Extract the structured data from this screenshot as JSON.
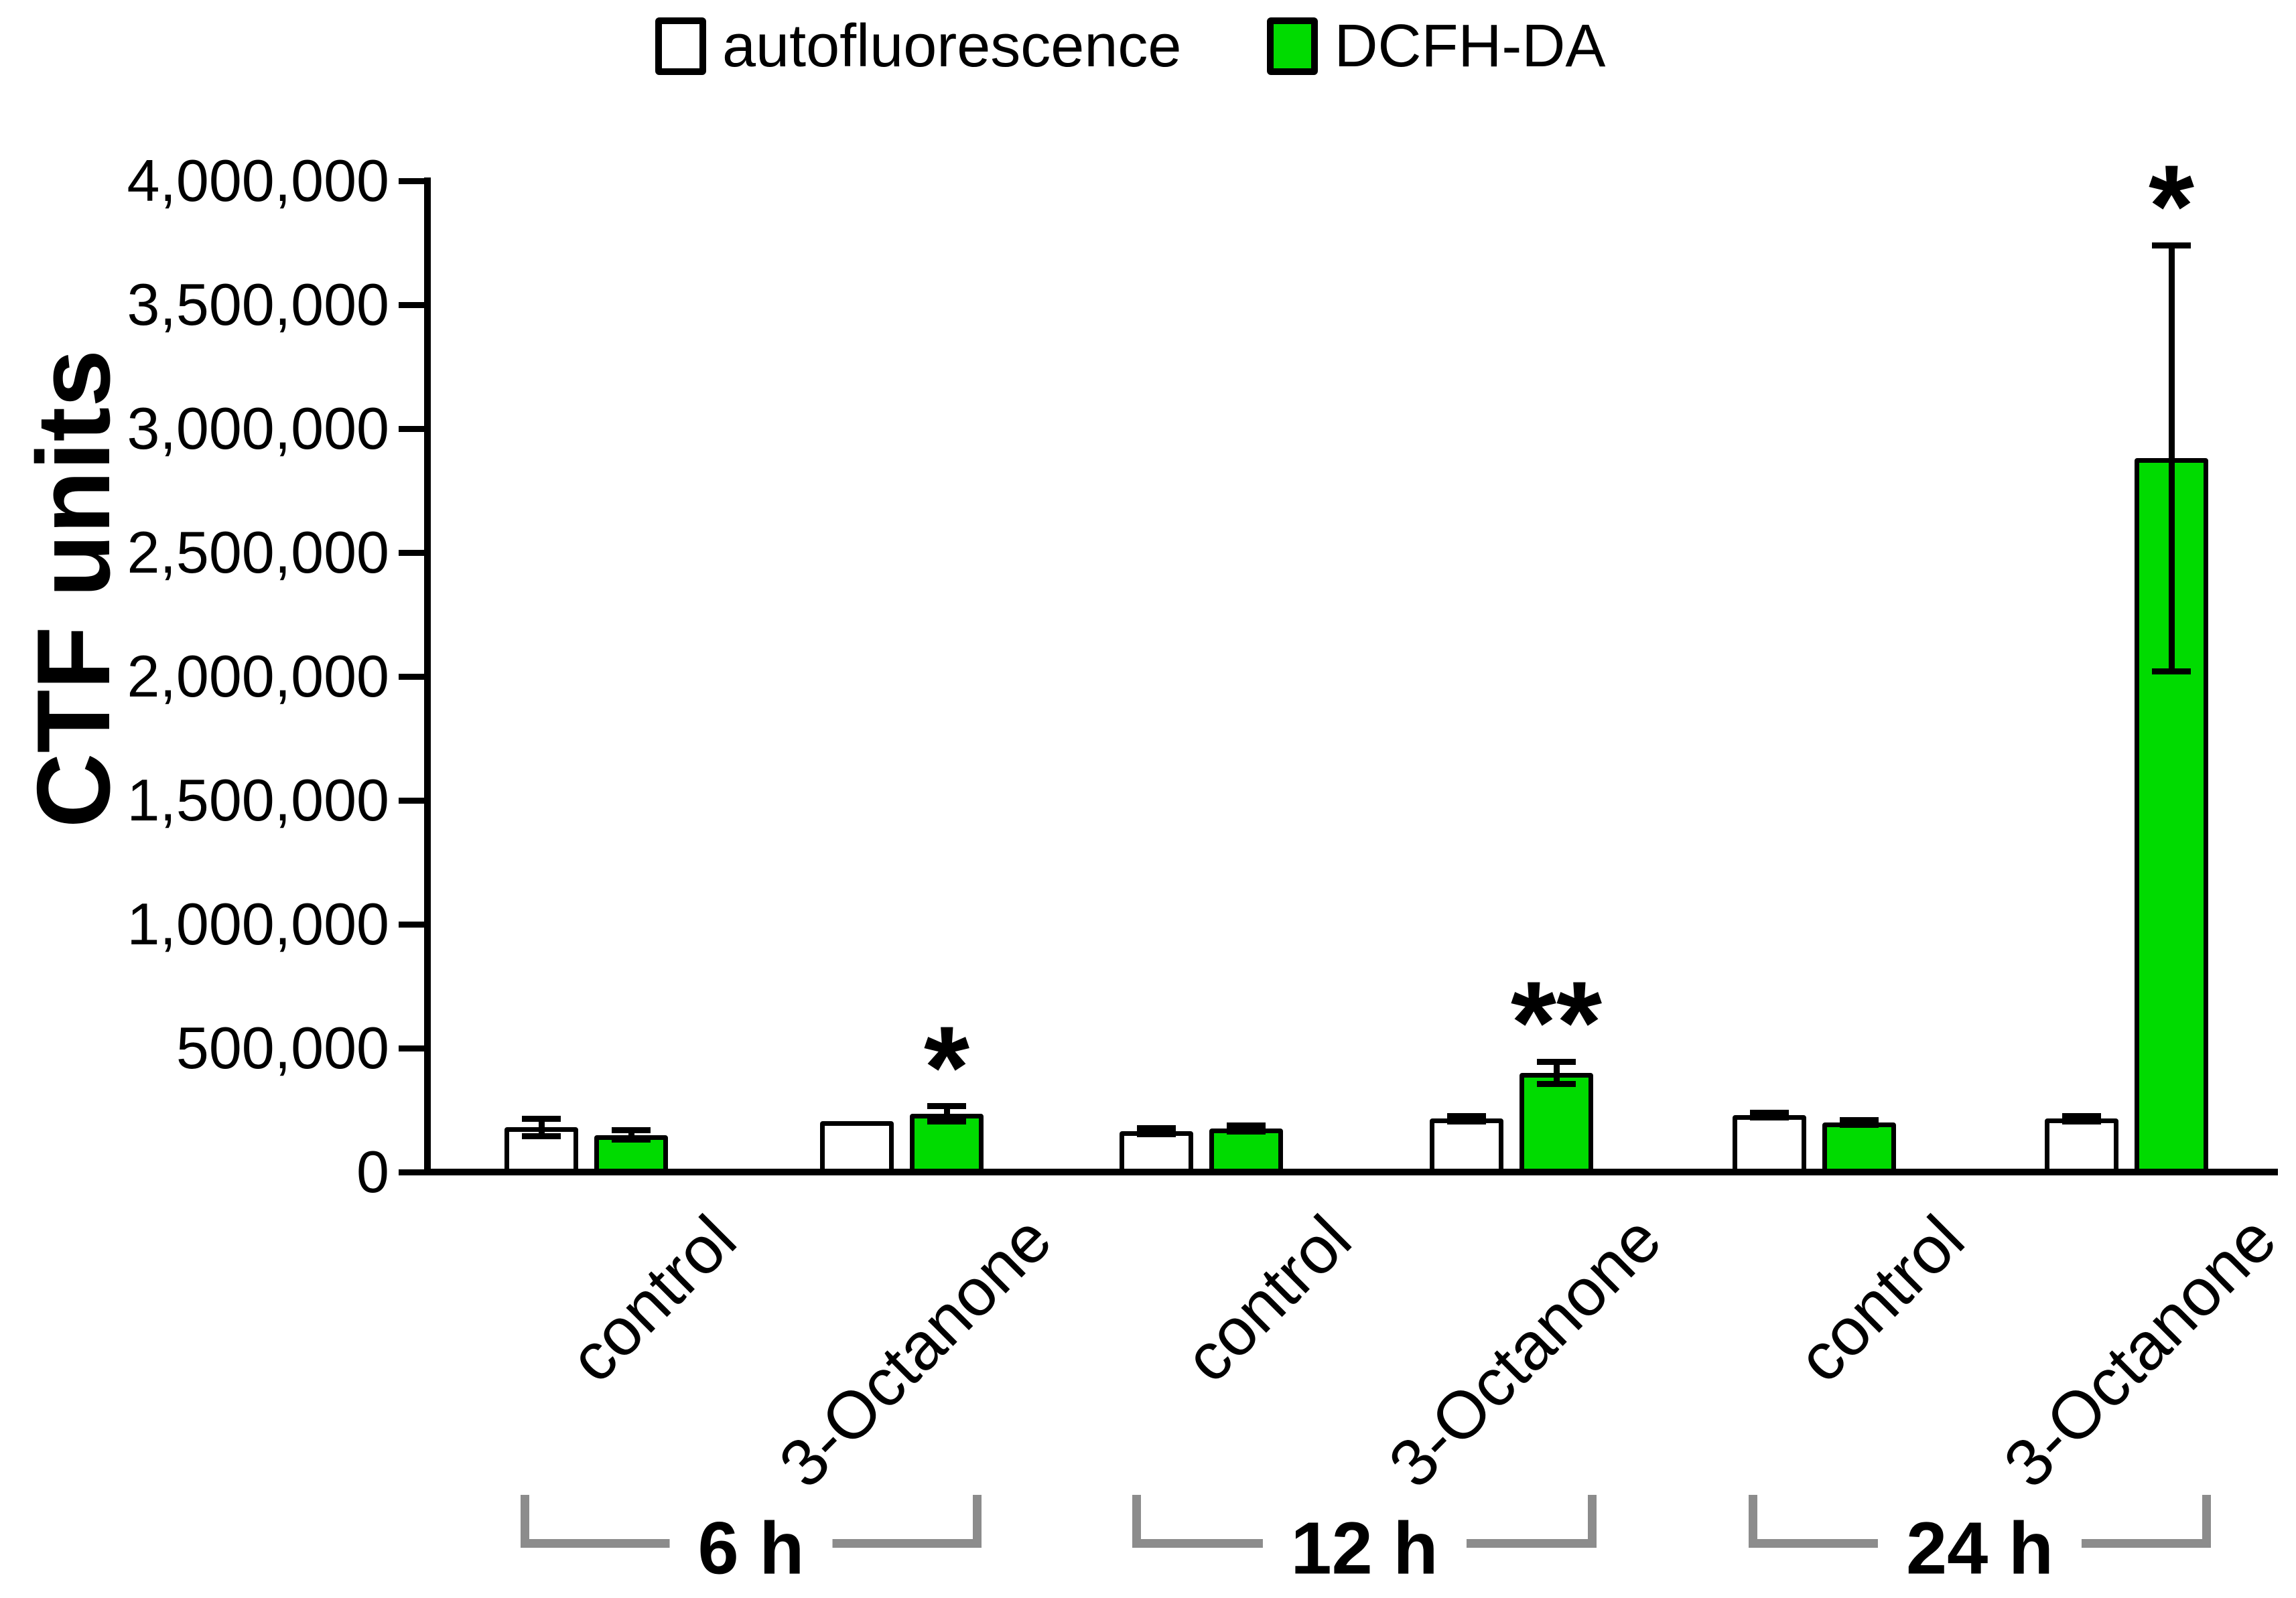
{
  "figure": {
    "ylabel": "CTF units",
    "colors": {
      "bar_white": "#ffffff",
      "bar_green": "#00db00",
      "bar_border": "#000000",
      "bracket_gray": "#8c8c8c"
    }
  },
  "chart_data": {
    "type": "bar",
    "title": "",
    "xlabel": "",
    "ylabel": "CTF units",
    "ylim": [
      0,
      4000000
    ],
    "grid": false,
    "legend_position": "top",
    "y_ticks": [
      {
        "value": 4000000,
        "label": "4,000,000"
      },
      {
        "value": 3500000,
        "label": "3,500,000"
      },
      {
        "value": 3000000,
        "label": "3,000,000"
      },
      {
        "value": 2500000,
        "label": "2,500,000"
      },
      {
        "value": 2000000,
        "label": "2,000,000"
      },
      {
        "value": 1500000,
        "label": "1,500,000"
      },
      {
        "value": 1000000,
        "label": "1,000,000"
      },
      {
        "value": 500000,
        "label": "500,000"
      },
      {
        "value": 0,
        "label": "0"
      }
    ],
    "series": [
      {
        "name": "autofluorescence",
        "color": "#ffffff"
      },
      {
        "name": "DCFH-DA",
        "color": "#00db00"
      }
    ],
    "groups": [
      {
        "label": "6 h",
        "conditions": [
          {
            "label": "control",
            "bars": [
              {
                "series": "autofluorescence",
                "value": 180000,
                "error": 35000,
                "sig": ""
              },
              {
                "series": "DCFH-DA",
                "value": 150000,
                "error": 20000,
                "sig": ""
              }
            ]
          },
          {
            "label": "3-Octanone",
            "bars": [
              {
                "series": "autofluorescence",
                "value": 205000,
                "error": 0,
                "sig": ""
              },
              {
                "series": "DCFH-DA",
                "value": 235000,
                "error": 30000,
                "sig": "*"
              }
            ]
          }
        ]
      },
      {
        "label": "12 h",
        "conditions": [
          {
            "label": "control",
            "bars": [
              {
                "series": "autofluorescence",
                "value": 165000,
                "error": 12000,
                "sig": ""
              },
              {
                "series": "DCFH-DA",
                "value": 175000,
                "error": 12000,
                "sig": ""
              }
            ]
          },
          {
            "label": "3-Octanone",
            "bars": [
              {
                "series": "autofluorescence",
                "value": 215000,
                "error": 12000,
                "sig": ""
              },
              {
                "series": "DCFH-DA",
                "value": 400000,
                "error": 45000,
                "sig": "**"
              }
            ]
          }
        ]
      },
      {
        "label": "24 h",
        "conditions": [
          {
            "label": "control",
            "bars": [
              {
                "series": "autofluorescence",
                "value": 230000,
                "error": 10000,
                "sig": ""
              },
              {
                "series": "DCFH-DA",
                "value": 200000,
                "error": 10000,
                "sig": ""
              }
            ]
          },
          {
            "label": "3-Octanone",
            "bars": [
              {
                "series": "autofluorescence",
                "value": 215000,
                "error": 10000,
                "sig": ""
              },
              {
                "series": "DCFH-DA",
                "value": 2880000,
                "error": 860000,
                "sig": "*"
              }
            ]
          }
        ]
      }
    ]
  }
}
